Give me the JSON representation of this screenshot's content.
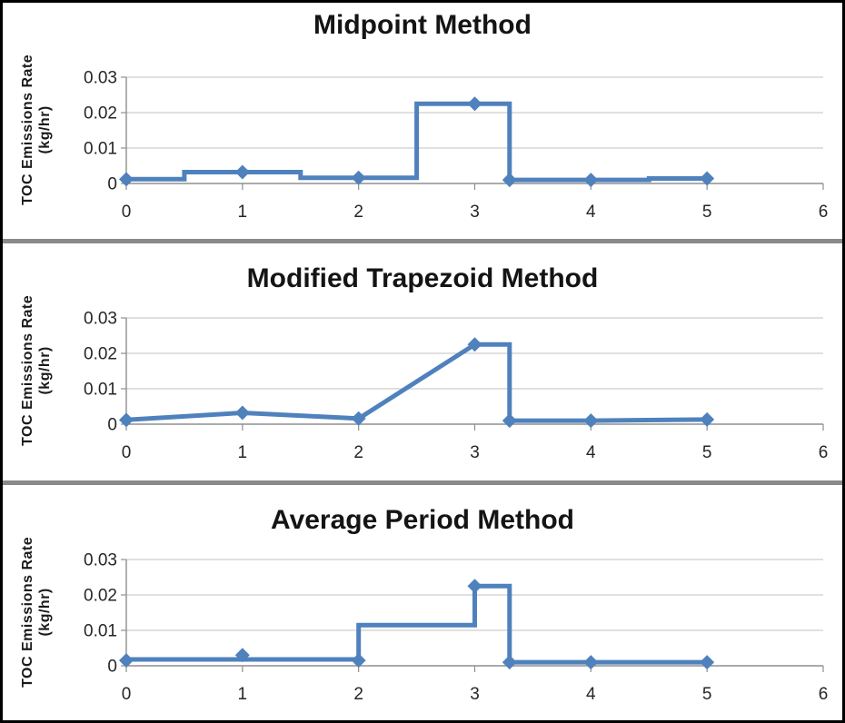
{
  "axis": {
    "y_title_line1": "TOC Emissions Rate",
    "y_title_line2": "(kg/hr)"
  },
  "colors": {
    "line": "#4F81BD",
    "marker": "#4F81BD",
    "gridline": "#C2C2C2",
    "axis": "#8F8F8F",
    "tick_label": "#262626",
    "title": "#141414",
    "separator": "#8A8A8A",
    "background": "#FFFFFF",
    "border": "#000000"
  },
  "chart_data": [
    {
      "type": "line",
      "title": "Midpoint Method",
      "xlabel": "",
      "ylabel": "TOC Emissions Rate (kg/hr)",
      "xlim": [
        0,
        6
      ],
      "ylim": [
        0,
        0.03
      ],
      "x_ticks": [
        0,
        1,
        2,
        3,
        4,
        5,
        6
      ],
      "x_tick_labels": [
        "0",
        "1",
        "2",
        "3",
        "4",
        "5",
        "6"
      ],
      "y_ticks": [
        0,
        0.01,
        0.02,
        0.03
      ],
      "y_tick_labels": [
        "0",
        "0.01",
        "0.02",
        "0.03"
      ],
      "grid": "horizontal",
      "legend": "none",
      "line_points": [
        [
          0,
          0.0012
        ],
        [
          0.5,
          0.0012
        ],
        [
          0.5,
          0.0032
        ],
        [
          1.5,
          0.0032
        ],
        [
          1.5,
          0.0016
        ],
        [
          2.5,
          0.0016
        ],
        [
          2.5,
          0.0225
        ],
        [
          3.3,
          0.0225
        ],
        [
          3.3,
          0.001
        ],
        [
          4.5,
          0.001
        ],
        [
          4.5,
          0.0014
        ],
        [
          5,
          0.0014
        ]
      ],
      "markers": [
        [
          0,
          0.0012
        ],
        [
          1,
          0.0032
        ],
        [
          2,
          0.0016
        ],
        [
          3,
          0.0225
        ],
        [
          3.3,
          0.001
        ],
        [
          4,
          0.001
        ],
        [
          5,
          0.0014
        ]
      ]
    },
    {
      "type": "line",
      "title": "Modified Trapezoid Method",
      "xlabel": "",
      "ylabel": "TOC Emissions Rate (kg/hr)",
      "xlim": [
        0,
        6
      ],
      "ylim": [
        0,
        0.03
      ],
      "x_ticks": [
        0,
        1,
        2,
        3,
        4,
        5,
        6
      ],
      "x_tick_labels": [
        "0",
        "1",
        "2",
        "3",
        "4",
        "5",
        "6"
      ],
      "y_ticks": [
        0,
        0.01,
        0.02,
        0.03
      ],
      "y_tick_labels": [
        "0",
        "0.01",
        "0.02",
        "0.03"
      ],
      "grid": "horizontal",
      "legend": "none",
      "line_points": [
        [
          0,
          0.0012
        ],
        [
          1,
          0.0032
        ],
        [
          2,
          0.0016
        ],
        [
          3,
          0.0225
        ],
        [
          3.3,
          0.0225
        ],
        [
          3.3,
          0.001
        ],
        [
          4,
          0.001
        ],
        [
          5,
          0.0013
        ]
      ],
      "markers": [
        [
          0,
          0.0012
        ],
        [
          1,
          0.0032
        ],
        [
          2,
          0.0016
        ],
        [
          3,
          0.0225
        ],
        [
          3.3,
          0.001
        ],
        [
          4,
          0.001
        ],
        [
          5,
          0.0013
        ]
      ]
    },
    {
      "type": "line",
      "title": "Average Period Method",
      "xlabel": "",
      "ylabel": "TOC Emissions Rate (kg/hr)",
      "xlim": [
        0,
        6
      ],
      "ylim": [
        0,
        0.03
      ],
      "x_ticks": [
        0,
        1,
        2,
        3,
        4,
        5,
        6
      ],
      "x_tick_labels": [
        "0",
        "1",
        "2",
        "3",
        "4",
        "5",
        "6"
      ],
      "y_ticks": [
        0,
        0.01,
        0.02,
        0.03
      ],
      "y_tick_labels": [
        "0",
        "0.01",
        "0.02",
        "0.03"
      ],
      "grid": "horizontal",
      "legend": "none",
      "line_points": [
        [
          0,
          0.0018
        ],
        [
          2,
          0.0018
        ],
        [
          2,
          0.0115
        ],
        [
          3,
          0.0115
        ],
        [
          3,
          0.0225
        ],
        [
          3.3,
          0.0225
        ],
        [
          3.3,
          0.001
        ],
        [
          5,
          0.001
        ]
      ],
      "markers": [
        [
          0,
          0.0015
        ],
        [
          1,
          0.003
        ],
        [
          2,
          0.0015
        ],
        [
          3,
          0.0225
        ],
        [
          3.3,
          0.001
        ],
        [
          4,
          0.001
        ],
        [
          5,
          0.001
        ]
      ]
    }
  ]
}
